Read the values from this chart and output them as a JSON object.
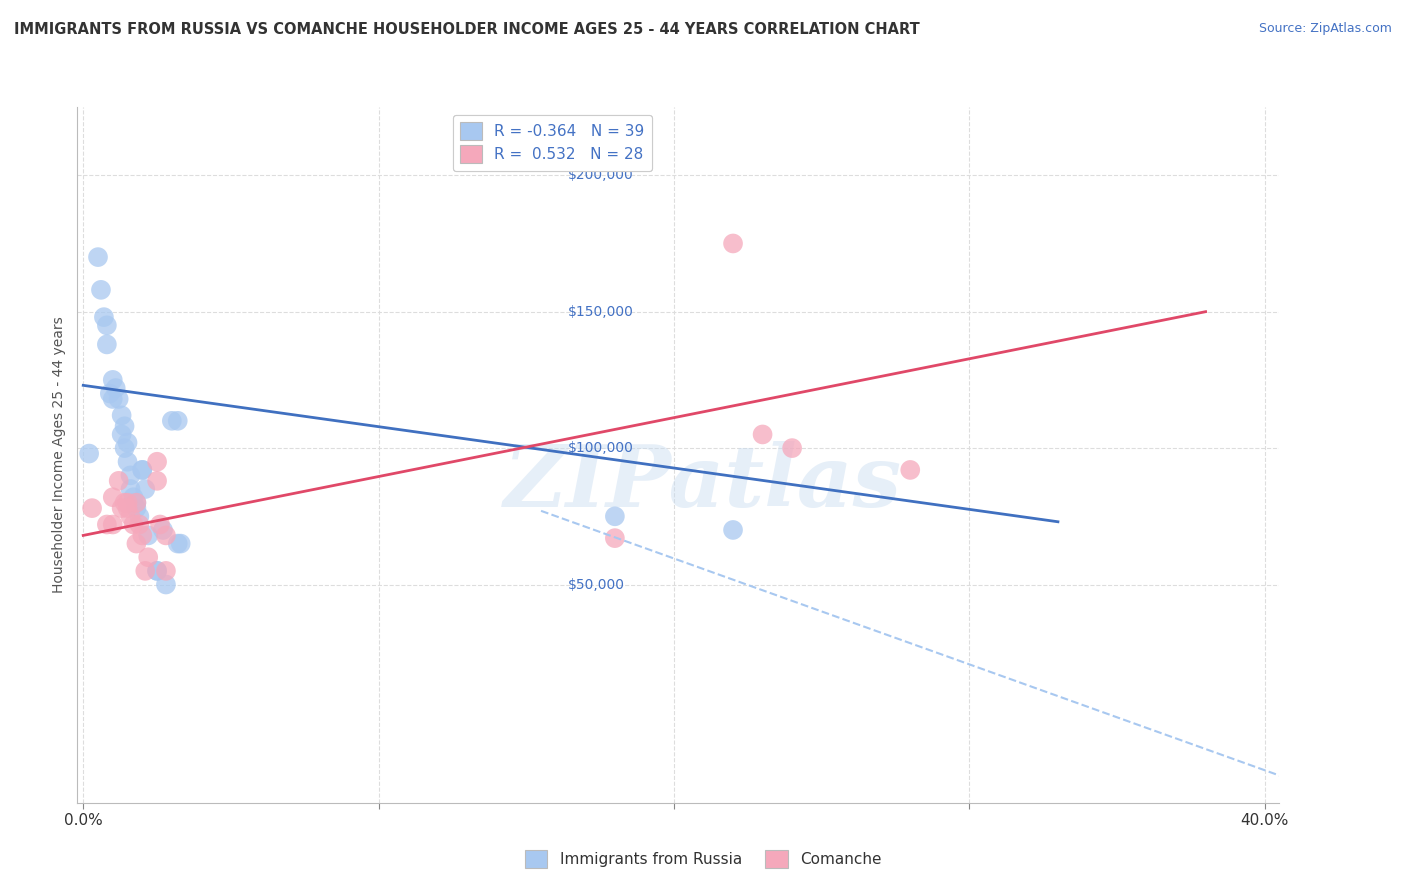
{
  "title": "IMMIGRANTS FROM RUSSIA VS COMANCHE HOUSEHOLDER INCOME AGES 25 - 44 YEARS CORRELATION CHART",
  "source": "Source: ZipAtlas.com",
  "ylabel": "Householder Income Ages 25 - 44 years",
  "xlim": [
    -0.002,
    0.405
  ],
  "ylim": [
    -30000,
    225000
  ],
  "plot_ylim": [
    -30000,
    225000
  ],
  "ytick_vals_right": [
    50000,
    100000,
    150000,
    200000
  ],
  "blue_color": "#A8C8F0",
  "pink_color": "#F5A8BB",
  "blue_line_color": "#4070C0",
  "pink_line_color": "#E04868",
  "dashed_line_color": "#A8C8F0",
  "watermark": "ZIPatlas",
  "grid_color": "#DDDDDD",
  "russia_scatter_x": [
    0.002,
    0.005,
    0.006,
    0.007,
    0.008,
    0.008,
    0.009,
    0.01,
    0.01,
    0.011,
    0.012,
    0.013,
    0.013,
    0.014,
    0.014,
    0.015,
    0.015,
    0.016,
    0.016,
    0.017,
    0.018,
    0.018,
    0.019,
    0.02,
    0.02,
    0.021,
    0.022,
    0.025,
    0.025,
    0.027,
    0.028,
    0.03,
    0.032,
    0.032,
    0.033,
    0.18,
    0.22
  ],
  "russia_scatter_y": [
    98000,
    170000,
    158000,
    148000,
    145000,
    138000,
    120000,
    125000,
    118000,
    122000,
    118000,
    112000,
    105000,
    108000,
    100000,
    102000,
    95000,
    90000,
    85000,
    82000,
    80000,
    78000,
    75000,
    92000,
    92000,
    85000,
    68000,
    55000,
    55000,
    70000,
    50000,
    110000,
    110000,
    65000,
    65000,
    75000,
    70000
  ],
  "comanche_scatter_x": [
    0.003,
    0.008,
    0.01,
    0.01,
    0.012,
    0.013,
    0.014,
    0.015,
    0.015,
    0.016,
    0.017,
    0.018,
    0.018,
    0.019,
    0.02,
    0.021,
    0.022,
    0.025,
    0.025,
    0.026,
    0.028,
    0.028,
    0.18,
    0.22,
    0.23,
    0.24,
    0.28
  ],
  "comanche_scatter_y": [
    78000,
    72000,
    82000,
    72000,
    88000,
    78000,
    80000,
    80000,
    78000,
    75000,
    72000,
    80000,
    65000,
    72000,
    68000,
    55000,
    60000,
    95000,
    88000,
    72000,
    68000,
    55000,
    67000,
    175000,
    105000,
    100000,
    92000
  ],
  "blue_line_x": [
    0.0,
    0.33
  ],
  "blue_line_y": [
    123000,
    73000
  ],
  "pink_line_x": [
    0.0,
    0.38
  ],
  "pink_line_y": [
    68000,
    150000
  ],
  "dashed_line_x": [
    0.155,
    0.405
  ],
  "dashed_line_y": [
    77000,
    -20000
  ]
}
